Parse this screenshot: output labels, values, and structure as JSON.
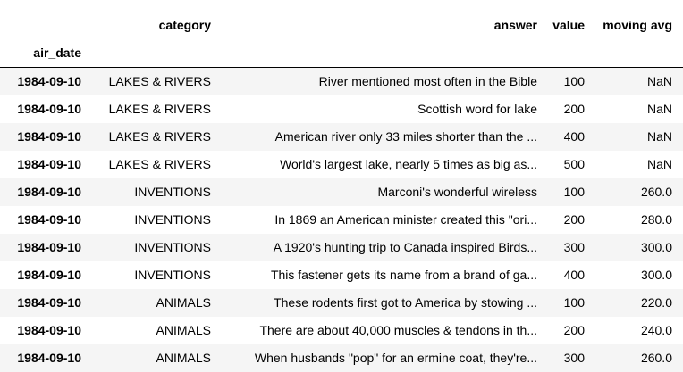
{
  "columns": {
    "index_name": "air_date",
    "category": "category",
    "answer": "answer",
    "value": "value",
    "moving_avg": "moving avg"
  },
  "rows": [
    {
      "air_date": "1984-09-10",
      "category": "LAKES & RIVERS",
      "answer": "River mentioned most often in the Bible",
      "value": "100",
      "moving_avg": "NaN"
    },
    {
      "air_date": "1984-09-10",
      "category": "LAKES & RIVERS",
      "answer": "Scottish word for lake",
      "value": "200",
      "moving_avg": "NaN"
    },
    {
      "air_date": "1984-09-10",
      "category": "LAKES & RIVERS",
      "answer": "American river only 33 miles shorter than the ...",
      "value": "400",
      "moving_avg": "NaN"
    },
    {
      "air_date": "1984-09-10",
      "category": "LAKES & RIVERS",
      "answer": "World's largest lake, nearly 5 times as big as...",
      "value": "500",
      "moving_avg": "NaN"
    },
    {
      "air_date": "1984-09-10",
      "category": "INVENTIONS",
      "answer": "Marconi's wonderful wireless",
      "value": "100",
      "moving_avg": "260.0"
    },
    {
      "air_date": "1984-09-10",
      "category": "INVENTIONS",
      "answer": "In 1869 an American minister created this \"ori...",
      "value": "200",
      "moving_avg": "280.0"
    },
    {
      "air_date": "1984-09-10",
      "category": "INVENTIONS",
      "answer": "A 1920's hunting trip to Canada inspired Birds...",
      "value": "300",
      "moving_avg": "300.0"
    },
    {
      "air_date": "1984-09-10",
      "category": "INVENTIONS",
      "answer": "This fastener gets its name from a brand of ga...",
      "value": "400",
      "moving_avg": "300.0"
    },
    {
      "air_date": "1984-09-10",
      "category": "ANIMALS",
      "answer": "These rodents first got to America by stowing ...",
      "value": "100",
      "moving_avg": "220.0"
    },
    {
      "air_date": "1984-09-10",
      "category": "ANIMALS",
      "answer": "There are about 40,000 muscles & tendons in th...",
      "value": "200",
      "moving_avg": "240.0"
    },
    {
      "air_date": "1984-09-10",
      "category": "ANIMALS",
      "answer": "When husbands \"pop\" for an ermine coat, they're...",
      "value": "300",
      "moving_avg": "260.0"
    }
  ]
}
